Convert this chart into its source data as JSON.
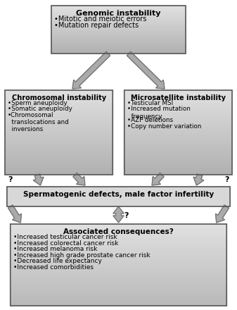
{
  "bg_color": "#ffffff",
  "box_fill_top": "#d0d0d0",
  "box_fill_mid": "#c8c8c8",
  "box_fill_bottom": "#d0d0d0",
  "box_edge_color": "#555555",
  "arrow_color": "#888888",
  "arrow_edge_color": "#555555",
  "top_box": {
    "title": "Genomic instability",
    "bullets": [
      "•Mitotic and meiotic errors",
      "•Mutation repair defects"
    ]
  },
  "left_box": {
    "title": "Chromosomal instability",
    "bullets": [
      "•Sperm aneuploidy",
      "•Somatic aneuploidy",
      "•Chromosomal\n  translocations and\n  inversions"
    ]
  },
  "right_box": {
    "title": "Microsatellite instability",
    "bullets": [
      "•Testicular MSI",
      "•Increased mutation\n  frequency",
      "•AZF deletions",
      "•Copy number variation"
    ]
  },
  "mid_box": {
    "title": "Spermatogenic defects, male factor infertility",
    "bullets": []
  },
  "bottom_box": {
    "title": "Associated consequences?",
    "bullets": [
      "•Increased testicular cancer risk",
      "•Increased colorectal cancer risk",
      "•Increased melanoma risk",
      "•Increased high grade prostate cancer risk",
      "•Decreased life expectancy",
      "•Increased comorbidities"
    ]
  }
}
